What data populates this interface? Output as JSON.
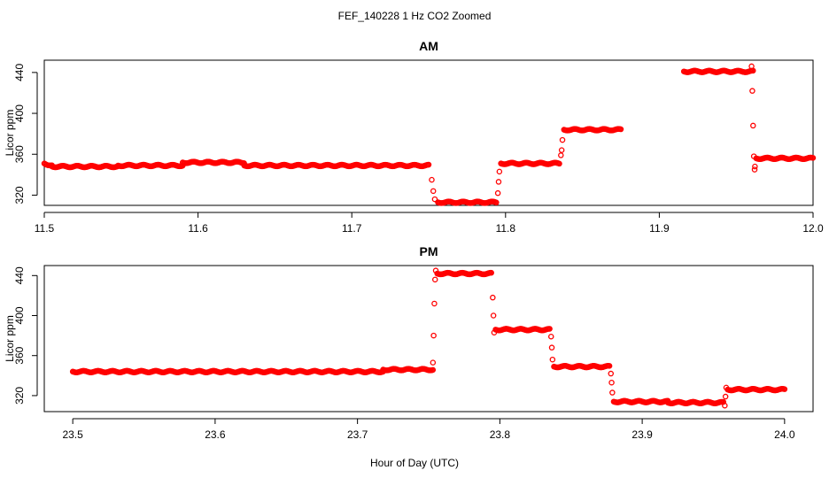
{
  "figure": {
    "title": "FEF_140228 1 Hz CO2 Zoomed",
    "xlabel": "Hour of Day (UTC)"
  },
  "colors": {
    "points": "#ff0000",
    "axis": "#000000"
  },
  "chart_data": [
    {
      "type": "scatter",
      "title": "AM",
      "xlabel": "",
      "ylabel": "Licor ppm",
      "xlim": [
        11.5,
        12.0
      ],
      "ylim": [
        310,
        452
      ],
      "xticks": [
        "11.5",
        "11.6",
        "11.7",
        "11.8",
        "11.9",
        "12.0"
      ],
      "xtick_values": [
        11.5,
        11.6,
        11.7,
        11.8,
        11.9,
        12.0
      ],
      "yticks": [
        "320",
        "360",
        "400",
        "440"
      ],
      "ytick_values": [
        320,
        360,
        400,
        440
      ],
      "marker": "open-circle",
      "series": [
        {
          "segments": [
            {
              "x": [
                11.5,
                11.505
              ],
              "y": [
                351,
                349
              ]
            },
            {
              "x": [
                11.505,
                11.548
              ],
              "y": [
                348,
                348
              ]
            },
            {
              "x": [
                11.548,
                11.59
              ],
              "y": [
                349,
                349
              ]
            },
            {
              "x": [
                11.59,
                11.63
              ],
              "y": [
                352,
                352
              ]
            },
            {
              "x": [
                11.63,
                11.75
              ],
              "y": [
                349,
                349
              ]
            },
            {
              "x": [
                11.756,
                11.794
              ],
              "y": [
                313,
                313
              ]
            },
            {
              "x": [
                11.797,
                11.835
              ],
              "y": [
                351,
                351
              ]
            },
            {
              "x": [
                11.838,
                11.875
              ],
              "y": [
                384,
                384
              ]
            },
            {
              "x": [
                11.916,
                11.961
              ],
              "y": [
                441,
                441
              ]
            },
            {
              "x": [
                11.963,
                12.0
              ],
              "y": [
                356,
                356
              ]
            }
          ],
          "transitions": [
            {
              "x": 11.752,
              "y": 335
            },
            {
              "x": 11.753,
              "y": 324
            },
            {
              "x": 11.754,
              "y": 316
            },
            {
              "x": 11.795,
              "y": 322
            },
            {
              "x": 11.7955,
              "y": 333
            },
            {
              "x": 11.796,
              "y": 343
            },
            {
              "x": 11.8365,
              "y": 364
            },
            {
              "x": 11.837,
              "y": 374
            },
            {
              "x": 11.836,
              "y": 359
            },
            {
              "x": 11.96,
              "y": 446
            },
            {
              "x": 11.9605,
              "y": 422
            },
            {
              "x": 11.961,
              "y": 388
            },
            {
              "x": 11.9615,
              "y": 358
            },
            {
              "x": 11.962,
              "y": 345
            },
            {
              "x": 11.9622,
              "y": 348
            }
          ]
        }
      ]
    },
    {
      "type": "scatter",
      "title": "PM",
      "xlabel": "",
      "ylabel": "Licor ppm",
      "xlim": [
        23.48,
        24.02
      ],
      "ylim": [
        304,
        450
      ],
      "xticks": [
        "23.5",
        "23.6",
        "23.7",
        "23.8",
        "23.9",
        "24.0"
      ],
      "xtick_values": [
        23.5,
        23.6,
        23.7,
        23.8,
        23.9,
        24.0
      ],
      "yticks": [
        "320",
        "360",
        "400",
        "440"
      ],
      "ytick_values": [
        320,
        360,
        400,
        440
      ],
      "marker": "open-circle",
      "series": [
        {
          "segments": [
            {
              "x": [
                23.5,
                23.718
              ],
              "y": [
                344,
                344
              ]
            },
            {
              "x": [
                23.718,
                23.753
              ],
              "y": [
                346,
                346
              ]
            },
            {
              "x": [
                23.756,
                23.794
              ],
              "y": [
                442,
                442
              ]
            },
            {
              "x": [
                23.797,
                23.835
              ],
              "y": [
                386,
                386
              ]
            },
            {
              "x": [
                23.838,
                23.877
              ],
              "y": [
                349,
                349
              ]
            },
            {
              "x": [
                23.88,
                23.918
              ],
              "y": [
                314,
                314
              ]
            },
            {
              "x": [
                23.918,
                23.957
              ],
              "y": [
                313,
                313
              ]
            },
            {
              "x": [
                23.96,
                24.0
              ],
              "y": [
                326,
                326
              ]
            }
          ],
          "transitions": [
            {
              "x": 23.753,
              "y": 353
            },
            {
              "x": 23.7535,
              "y": 380
            },
            {
              "x": 23.754,
              "y": 412
            },
            {
              "x": 23.7545,
              "y": 436
            },
            {
              "x": 23.755,
              "y": 445
            },
            {
              "x": 23.795,
              "y": 418
            },
            {
              "x": 23.7955,
              "y": 400
            },
            {
              "x": 23.796,
              "y": 383
            },
            {
              "x": 23.836,
              "y": 379
            },
            {
              "x": 23.8365,
              "y": 368
            },
            {
              "x": 23.837,
              "y": 356
            },
            {
              "x": 23.878,
              "y": 342
            },
            {
              "x": 23.8785,
              "y": 333
            },
            {
              "x": 23.879,
              "y": 323
            },
            {
              "x": 23.958,
              "y": 310
            },
            {
              "x": 23.9585,
              "y": 319
            },
            {
              "x": 23.959,
              "y": 328
            }
          ]
        }
      ]
    }
  ]
}
